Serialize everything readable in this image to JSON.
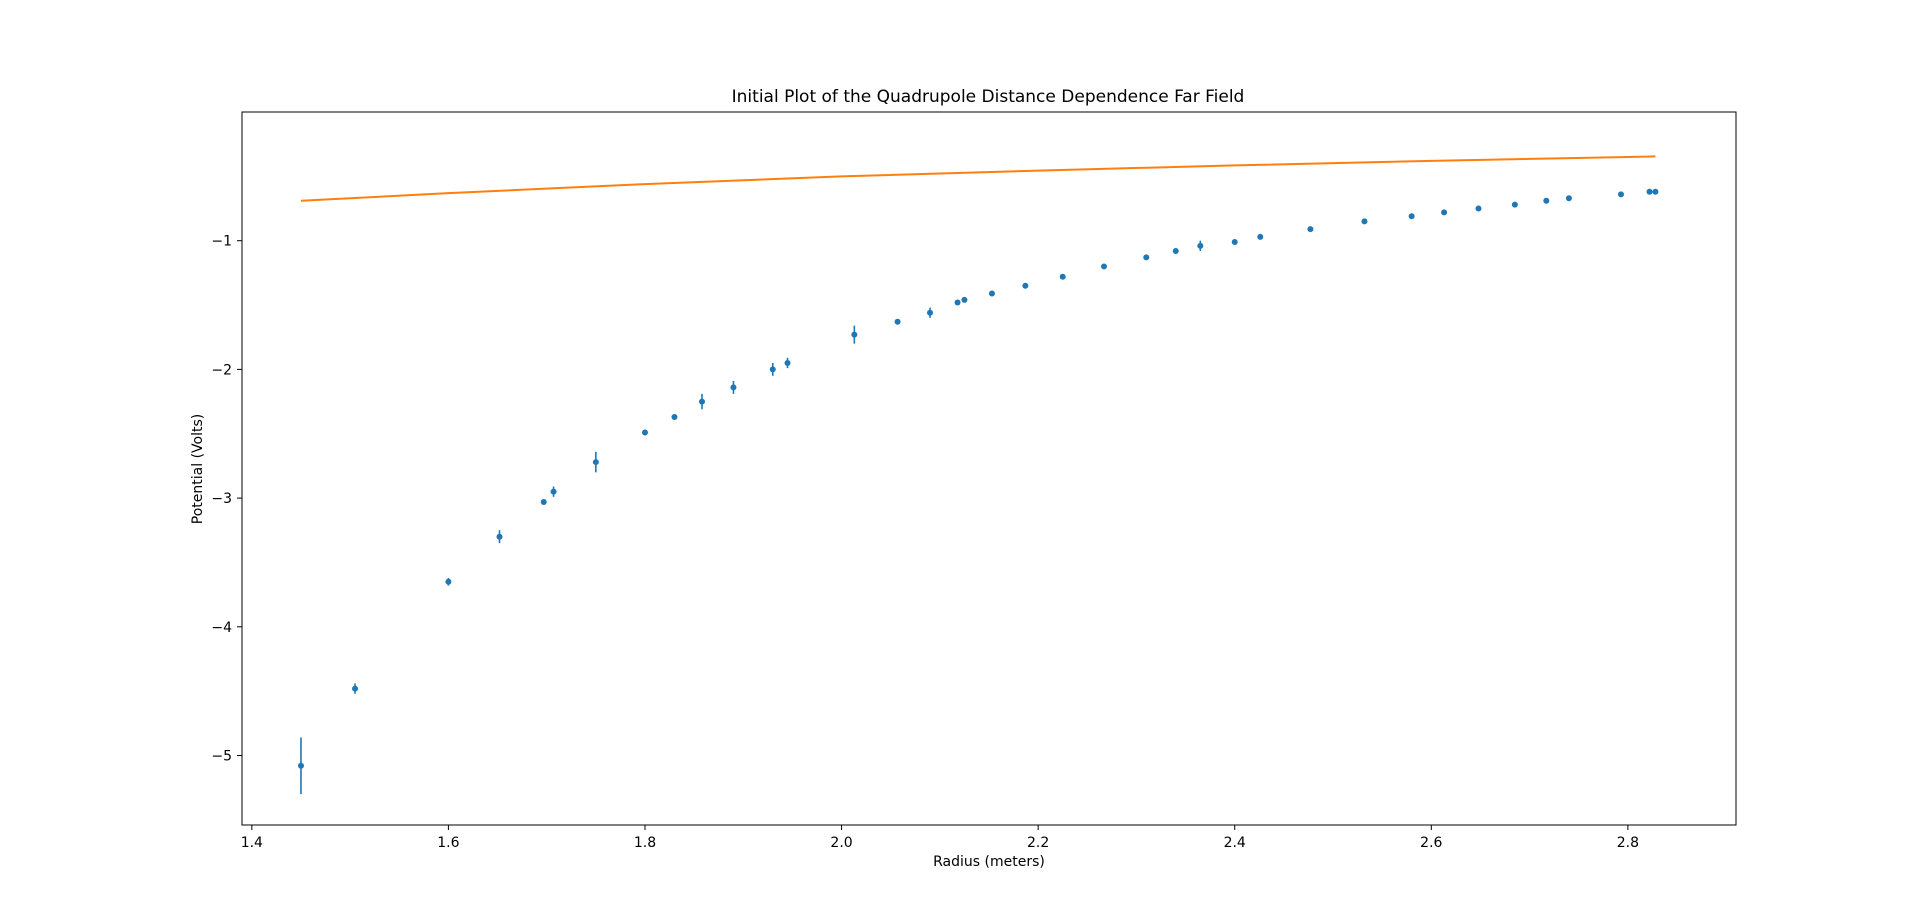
{
  "colors": {
    "data_series": "#1f77b4",
    "fit_series": "#ff7f0e",
    "axes": "#000000",
    "background": "#ffffff"
  },
  "chart_data": {
    "type": "scatter",
    "title": "Initial Plot of the Quadrupole Distance Dependence Far Field",
    "xlabel": "Radius (meters)",
    "ylabel": "Potential (Volts)",
    "xlim": [
      1.39,
      2.91
    ],
    "ylim": [
      -5.54,
      -0.0
    ],
    "xticks": [
      1.4,
      1.6,
      1.8,
      2.0,
      2.2,
      2.4,
      2.6,
      2.8
    ],
    "xtick_labels": [
      "1.4",
      "1.6",
      "1.8",
      "2.0",
      "2.2",
      "2.4",
      "2.6",
      "2.8"
    ],
    "yticks": [
      -1,
      -2,
      -3,
      -4,
      -5
    ],
    "ytick_labels": [
      "−1",
      "−2",
      "−3",
      "−4",
      "−5"
    ],
    "grid": false,
    "legend": "none",
    "series": [
      {
        "kind": "errorbar-points",
        "color": "#1f77b4",
        "x": [
          1.45,
          1.505,
          1.6,
          1.652,
          1.697,
          1.707,
          1.75,
          1.8,
          1.83,
          1.858,
          1.89,
          1.93,
          1.945,
          2.013,
          2.057,
          2.09,
          2.118,
          2.125,
          2.153,
          2.187,
          2.225,
          2.267,
          2.31,
          2.34,
          2.365,
          2.4,
          2.426,
          2.477,
          2.532,
          2.58,
          2.613,
          2.648,
          2.685,
          2.717,
          2.74,
          2.793,
          2.822,
          2.828
        ],
        "y": [
          -5.08,
          -4.48,
          -3.65,
          -3.3,
          -3.03,
          -2.95,
          -2.72,
          -2.49,
          -2.37,
          -2.25,
          -2.14,
          -2.0,
          -1.95,
          -1.73,
          -1.63,
          -1.56,
          -1.48,
          -1.46,
          -1.41,
          -1.35,
          -1.28,
          -1.2,
          -1.13,
          -1.08,
          -1.04,
          -1.01,
          -0.97,
          -0.91,
          -0.85,
          -0.81,
          -0.78,
          -0.75,
          -0.72,
          -0.69,
          -0.67,
          -0.64,
          -0.62,
          -0.62
        ],
        "yerr": [
          0.22,
          0.04,
          0.03,
          0.05,
          0.02,
          0.04,
          0.08,
          0.02,
          0.02,
          0.06,
          0.05,
          0.05,
          0.04,
          0.07,
          0.02,
          0.04,
          0.02,
          0.02,
          0.02,
          0.02,
          0.02,
          0.02,
          0.02,
          0.02,
          0.04,
          0.02,
          0.02,
          0.02,
          0.02,
          0.02,
          0.02,
          0.02,
          0.02,
          0.02,
          0.02,
          0.02,
          0.02,
          0.02
        ]
      },
      {
        "kind": "line",
        "color": "#ff7f0e",
        "x": [
          1.45,
          1.6,
          1.8,
          2.0,
          2.2,
          2.4,
          2.6,
          2.8,
          2.828
        ],
        "y": [
          -0.69,
          -0.63,
          -0.56,
          -0.5,
          -0.455,
          -0.415,
          -0.38,
          -0.35,
          -0.345
        ]
      }
    ]
  }
}
